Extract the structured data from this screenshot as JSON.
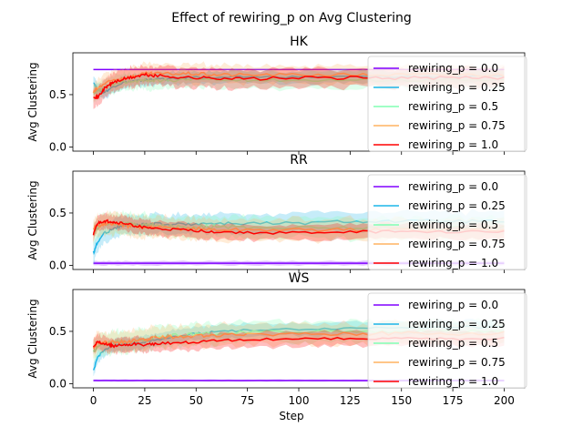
{
  "figure": {
    "suptitle": "Effect of rewiring_p on  Avg Clustering",
    "xlabel": "Step"
  },
  "colors": {
    "series": [
      "#8000ff",
      "#1cb5e8",
      "#80ffb4",
      "#ffb360",
      "#ff0000"
    ]
  },
  "chart_data": [
    {
      "type": "line",
      "title": "HK",
      "ylabel": "Avg Clustering",
      "xlim": [
        -10,
        210
      ],
      "ylim": [
        -0.04,
        0.9
      ],
      "xticks": [
        0,
        25,
        50,
        75,
        100,
        125,
        150,
        175,
        200
      ],
      "yticks": [
        0.0,
        0.5
      ],
      "legend": "upper-right",
      "series": [
        {
          "name": "rewiring_p = 0.0",
          "x": [
            0,
            10,
            25,
            50,
            75,
            100,
            125,
            150,
            175,
            200
          ],
          "y": [
            0.74,
            0.74,
            0.74,
            0.74,
            0.74,
            0.74,
            0.74,
            0.74,
            0.74,
            0.74
          ],
          "band": 0.005
        },
        {
          "name": "rewiring_p = 0.25",
          "x": [
            0,
            2,
            5,
            10,
            15,
            20,
            25,
            30,
            40,
            50,
            60,
            75,
            100,
            125,
            150,
            175,
            200
          ],
          "y": [
            0.62,
            0.55,
            0.52,
            0.58,
            0.62,
            0.63,
            0.64,
            0.65,
            0.65,
            0.67,
            0.66,
            0.67,
            0.67,
            0.67,
            0.67,
            0.67,
            0.67
          ],
          "band": 0.06
        },
        {
          "name": "rewiring_p = 0.5",
          "x": [
            0,
            2,
            5,
            10,
            15,
            20,
            25,
            30,
            40,
            50,
            60,
            75,
            100,
            125,
            150,
            175,
            200
          ],
          "y": [
            0.5,
            0.53,
            0.56,
            0.6,
            0.62,
            0.63,
            0.64,
            0.63,
            0.64,
            0.65,
            0.64,
            0.64,
            0.64,
            0.64,
            0.64,
            0.64,
            0.64
          ],
          "band": 0.08
        },
        {
          "name": "rewiring_p = 0.75",
          "x": [
            0,
            2,
            5,
            10,
            15,
            20,
            25,
            30,
            40,
            50,
            60,
            75,
            100,
            125,
            150,
            175,
            200
          ],
          "y": [
            0.52,
            0.56,
            0.6,
            0.64,
            0.66,
            0.68,
            0.7,
            0.7,
            0.7,
            0.7,
            0.69,
            0.69,
            0.69,
            0.69,
            0.69,
            0.69,
            0.69
          ],
          "band": 0.09
        },
        {
          "name": "rewiring_p = 1.0",
          "x": [
            0,
            2,
            5,
            8,
            10,
            15,
            20,
            25,
            30,
            40,
            50,
            60,
            75,
            100,
            125,
            150,
            175,
            200
          ],
          "y": [
            0.49,
            0.47,
            0.55,
            0.6,
            0.62,
            0.65,
            0.67,
            0.69,
            0.68,
            0.67,
            0.66,
            0.66,
            0.65,
            0.66,
            0.66,
            0.66,
            0.66,
            0.66
          ],
          "band": 0.09
        }
      ]
    },
    {
      "type": "line",
      "title": "RR",
      "ylabel": "Avg Clustering",
      "xlim": [
        -10,
        210
      ],
      "ylim": [
        -0.04,
        0.9
      ],
      "xticks": [
        0,
        25,
        50,
        75,
        100,
        125,
        150,
        175,
        200
      ],
      "yticks": [
        0.0,
        0.5
      ],
      "legend": "upper-right",
      "series": [
        {
          "name": "rewiring_p = 0.0",
          "x": [
            0,
            10,
            25,
            50,
            75,
            100,
            125,
            150,
            175,
            200
          ],
          "y": [
            0.02,
            0.02,
            0.02,
            0.02,
            0.02,
            0.02,
            0.02,
            0.02,
            0.02,
            0.02
          ],
          "band": 0.02
        },
        {
          "name": "rewiring_p = 0.25",
          "x": [
            0,
            2,
            5,
            10,
            15,
            20,
            25,
            30,
            40,
            50,
            60,
            75,
            100,
            125,
            150,
            175,
            200
          ],
          "y": [
            0.12,
            0.22,
            0.3,
            0.36,
            0.38,
            0.38,
            0.39,
            0.4,
            0.39,
            0.4,
            0.4,
            0.4,
            0.4,
            0.42,
            0.42,
            0.42,
            0.42
          ],
          "band": 0.09
        },
        {
          "name": "rewiring_p = 0.5",
          "x": [
            0,
            2,
            5,
            10,
            15,
            20,
            25,
            30,
            40,
            50,
            60,
            75,
            100,
            125,
            150,
            175,
            200
          ],
          "y": [
            0.3,
            0.36,
            0.4,
            0.4,
            0.4,
            0.39,
            0.39,
            0.38,
            0.37,
            0.37,
            0.37,
            0.36,
            0.36,
            0.36,
            0.36,
            0.36,
            0.36
          ],
          "band": 0.1
        },
        {
          "name": "rewiring_p = 0.75",
          "x": [
            0,
            2,
            5,
            10,
            15,
            20,
            25,
            30,
            40,
            50,
            60,
            75,
            100,
            125,
            150,
            175,
            200
          ],
          "y": [
            0.35,
            0.38,
            0.4,
            0.4,
            0.38,
            0.37,
            0.36,
            0.36,
            0.35,
            0.35,
            0.34,
            0.34,
            0.34,
            0.34,
            0.34,
            0.34,
            0.34
          ],
          "band": 0.1
        },
        {
          "name": "rewiring_p = 1.0",
          "x": [
            0,
            2,
            5,
            8,
            10,
            15,
            20,
            25,
            30,
            40,
            50,
            60,
            75,
            100,
            125,
            150,
            175,
            200
          ],
          "y": [
            0.3,
            0.4,
            0.42,
            0.42,
            0.41,
            0.4,
            0.38,
            0.36,
            0.35,
            0.34,
            0.33,
            0.32,
            0.31,
            0.31,
            0.32,
            0.32,
            0.32,
            0.32
          ],
          "band": 0.07
        }
      ]
    },
    {
      "type": "line",
      "title": "WS",
      "ylabel": "Avg Clustering",
      "xlim": [
        -10,
        210
      ],
      "ylim": [
        -0.04,
        0.9
      ],
      "xticks": [
        0,
        25,
        50,
        75,
        100,
        125,
        150,
        175,
        200
      ],
      "yticks": [
        0.0,
        0.5
      ],
      "legend": "upper-right",
      "series": [
        {
          "name": "rewiring_p = 0.0",
          "x": [
            0,
            10,
            25,
            50,
            75,
            100,
            125,
            150,
            175,
            200
          ],
          "y": [
            0.03,
            0.03,
            0.03,
            0.03,
            0.03,
            0.03,
            0.03,
            0.03,
            0.03,
            0.03
          ],
          "band": 0.01
        },
        {
          "name": "rewiring_p = 0.25",
          "x": [
            0,
            2,
            5,
            10,
            15,
            20,
            25,
            30,
            40,
            50,
            60,
            75,
            100,
            125,
            150,
            175,
            200
          ],
          "y": [
            0.12,
            0.25,
            0.32,
            0.36,
            0.38,
            0.38,
            0.4,
            0.42,
            0.45,
            0.48,
            0.5,
            0.51,
            0.52,
            0.53,
            0.54,
            0.54,
            0.54
          ],
          "band": 0.06
        },
        {
          "name": "rewiring_p = 0.5",
          "x": [
            0,
            2,
            5,
            10,
            15,
            20,
            25,
            30,
            40,
            50,
            60,
            75,
            100,
            125,
            150,
            175,
            200
          ],
          "y": [
            0.3,
            0.36,
            0.38,
            0.4,
            0.4,
            0.41,
            0.42,
            0.44,
            0.46,
            0.47,
            0.48,
            0.49,
            0.5,
            0.5,
            0.5,
            0.5,
            0.5
          ],
          "band": 0.1
        },
        {
          "name": "rewiring_p = 0.75",
          "x": [
            0,
            2,
            5,
            10,
            15,
            20,
            25,
            30,
            40,
            50,
            60,
            75,
            100,
            125,
            150,
            175,
            200
          ],
          "y": [
            0.35,
            0.38,
            0.4,
            0.4,
            0.4,
            0.41,
            0.42,
            0.44,
            0.45,
            0.46,
            0.46,
            0.47,
            0.48,
            0.48,
            0.48,
            0.48,
            0.48
          ],
          "band": 0.1
        },
        {
          "name": "rewiring_p = 1.0",
          "x": [
            0,
            2,
            5,
            8,
            10,
            15,
            20,
            25,
            30,
            40,
            50,
            60,
            75,
            100,
            125,
            150,
            175,
            200
          ],
          "y": [
            0.36,
            0.4,
            0.38,
            0.37,
            0.36,
            0.37,
            0.38,
            0.37,
            0.38,
            0.39,
            0.4,
            0.41,
            0.42,
            0.43,
            0.43,
            0.43,
            0.43,
            0.43
          ],
          "band": 0.07
        }
      ]
    }
  ]
}
